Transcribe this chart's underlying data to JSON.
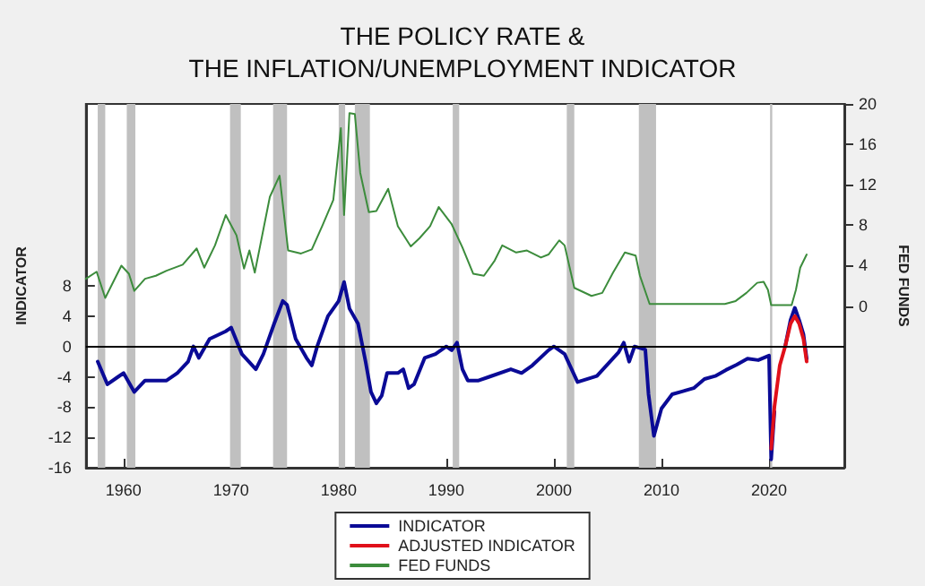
{
  "chart_data": {
    "type": "line",
    "title": "THE POLICY RATE &\nTHE INFLATION/UNEMPLOYMENT INDICATOR",
    "ylabel": "INDICATOR",
    "y2label": "FED FUNDS",
    "xlim": [
      1956.5,
      2027
    ],
    "xticks": [
      1960,
      1970,
      1980,
      1990,
      2000,
      2010,
      2020
    ],
    "ylim": [
      -16,
      32
    ],
    "yticks": [
      -16,
      -12,
      -8,
      -4,
      0,
      4,
      8
    ],
    "y2lim": [
      -16,
      20
    ],
    "y2ticks": [
      0,
      4,
      8,
      12,
      16,
      20
    ],
    "grid": false,
    "legend": "bottom",
    "series": [
      {
        "name": "INDICATOR",
        "color": "#0a0a96",
        "x": [
          1957.6,
          1958.5,
          1959.5,
          1960.0,
          1961.0,
          1962.0,
          1964.0,
          1965.0,
          1966.0,
          1966.5,
          1967.0,
          1968.0,
          1969.5,
          1970.0,
          1971.0,
          1972.3,
          1973.0,
          1974.0,
          1974.8,
          1975.2,
          1976.0,
          1977.0,
          1977.5,
          1978.0,
          1979.0,
          1980.0,
          1980.5,
          1981.0,
          1981.8,
          1982.5,
          1983.0,
          1983.5,
          1984.0,
          1984.5,
          1985.5,
          1986.0,
          1986.5,
          1987.0,
          1988.0,
          1989.0,
          1990.0,
          1990.5,
          1991.0,
          1991.5,
          1992.0,
          1993.0,
          1994.0,
          1996.0,
          1997.0,
          1998.0,
          1999.5,
          2000.0,
          2001.0,
          2002.2,
          2004.0,
          2006.0,
          2006.5,
          2007.0,
          2007.5,
          2008.5,
          2008.8,
          2009.3,
          2010.0,
          2011.0,
          2012.0,
          2013.0,
          2014.0,
          2015.0,
          2016.0,
          2017.0,
          2018.0,
          2019.0,
          2020.0,
          2020.2,
          2020.5,
          2021.0,
          2021.5,
          2022.0,
          2022.4,
          2022.8,
          2023.2,
          2023.5
        ],
        "values": [
          -2,
          -5,
          -4,
          -3.5,
          -6,
          -4.5,
          -4.5,
          -3.5,
          -2,
          0,
          -1.5,
          1,
          2,
          2.5,
          -1,
          -3,
          -1,
          3,
          6,
          5.5,
          1,
          -1.5,
          -2.5,
          0,
          4,
          6,
          8.5,
          5,
          3,
          -2,
          -6,
          -7.5,
          -6.5,
          -3.5,
          -3.5,
          -3,
          -5.5,
          -5,
          -1.5,
          -1,
          0,
          -0.5,
          0.5,
          -3,
          -4.5,
          -4.5,
          -4,
          -3,
          -3.5,
          -2.5,
          -0.5,
          0,
          -1,
          -4.7,
          -3.9,
          -0.8,
          0.5,
          -2,
          0,
          -0.4,
          -6.3,
          -11.8,
          -8.2,
          -6.3,
          -5.9,
          -5.5,
          -4.3,
          -3.9,
          -3.1,
          -2.4,
          -1.6,
          -1.8,
          -1.2,
          -14.9,
          -8.6,
          null,
          0,
          3.5,
          5.1,
          3.5,
          1.6,
          -1.6
        ]
      },
      {
        "name": "ADJUSTED INDICATOR",
        "color": "#e0101a",
        "x": [
          2020.2,
          2020.5,
          2021.0,
          2021.5,
          2022.0,
          2022.4,
          2022.8,
          2023.2,
          2023.5
        ],
        "values": [
          -13.5,
          -8,
          -2.5,
          0,
          3,
          4,
          3,
          1,
          -2
        ]
      },
      {
        "name": "FED FUNDS",
        "color": "#3c8c3c",
        "axis": "y2",
        "x": [
          1956.5,
          1957.5,
          1958.3,
          1959.8,
          1960.5,
          1961.0,
          1962.0,
          1963.0,
          1964.0,
          1965.5,
          1966.8,
          1967.5,
          1968.5,
          1969.5,
          1970.5,
          1971.2,
          1971.7,
          1972.2,
          1973.6,
          1974.5,
          1975.3,
          1976.5,
          1977.5,
          1978.5,
          1979.5,
          1980.2,
          1980.5,
          1981.0,
          1981.5,
          1982.0,
          1982.8,
          1983.5,
          1984.6,
          1985.5,
          1986.7,
          1987.5,
          1988.5,
          1989.3,
          1990.5,
          1991.5,
          1992.5,
          1993.5,
          1994.5,
          1995.2,
          1996.5,
          1997.5,
          1998.8,
          1999.5,
          2000.5,
          2001.0,
          2001.9,
          2003.5,
          2004.5,
          2005.5,
          2006.6,
          2007.6,
          2008.0,
          2008.9,
          2015.9,
          2016.9,
          2017.9,
          2018.9,
          2019.5,
          2019.9,
          2020.2,
          2022.1,
          2022.5,
          2022.9,
          2023.5
        ],
        "values": [
          2.7,
          3.4,
          0.8,
          4,
          3.2,
          1.5,
          2.7,
          3,
          3.5,
          4.1,
          5.7,
          3.8,
          6,
          9,
          7,
          3.7,
          5.5,
          3.3,
          10.8,
          12.9,
          5.5,
          5.2,
          5.6,
          8,
          10.5,
          17.6,
          9,
          19.1,
          19,
          13.2,
          9.3,
          9.4,
          11.6,
          7.9,
          5.9,
          6.7,
          7.9,
          9.8,
          8.1,
          5.8,
          3.2,
          3,
          4.5,
          6,
          5.3,
          5.5,
          4.8,
          5.1,
          6.5,
          6,
          1.8,
          1,
          1.3,
          3.3,
          5.3,
          5,
          3,
          0.2,
          0.2,
          0.5,
          1.3,
          2.3,
          2.4,
          1.6,
          0.1,
          0.1,
          1.6,
          3.8,
          5.1
        ]
      }
    ],
    "ref_lines": [
      {
        "axis": "y",
        "value": 0,
        "color": "#000000"
      }
    ],
    "bands": [
      {
        "axis": "x",
        "from": 1957.6,
        "to": 1958.3,
        "color": "#c0c0c0"
      },
      {
        "axis": "x",
        "from": 1960.3,
        "to": 1961.1,
        "color": "#c0c0c0"
      },
      {
        "axis": "x",
        "from": 1969.9,
        "to": 1970.9,
        "color": "#c0c0c0"
      },
      {
        "axis": "x",
        "from": 1973.9,
        "to": 1975.2,
        "color": "#c0c0c0"
      },
      {
        "axis": "x",
        "from": 1980.0,
        "to": 1980.6,
        "color": "#c0c0c0"
      },
      {
        "axis": "x",
        "from": 1981.5,
        "to": 1982.9,
        "color": "#c0c0c0"
      },
      {
        "axis": "x",
        "from": 1990.6,
        "to": 1991.2,
        "color": "#c0c0c0"
      },
      {
        "axis": "x",
        "from": 2001.2,
        "to": 2001.9,
        "color": "#c0c0c0"
      },
      {
        "axis": "x",
        "from": 2007.9,
        "to": 2009.5,
        "color": "#c0c0c0"
      },
      {
        "axis": "x",
        "from": 2020.1,
        "to": 2020.3,
        "color": "#c0c0c0"
      }
    ]
  }
}
